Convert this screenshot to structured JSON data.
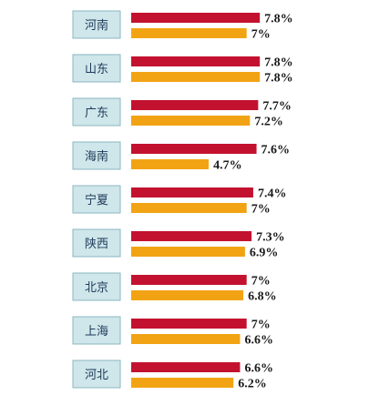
{
  "colors": {
    "series_red": "#c3122f",
    "series_orange": "#f2a314",
    "label_box_fill": "#cfe6ea",
    "label_box_stroke": "#8bb7c1"
  },
  "chart_data": {
    "type": "bar",
    "orientation": "horizontal",
    "categories": [
      "河南",
      "山东",
      "广东",
      "海南",
      "宁夏",
      "陕西",
      "北京",
      "上海",
      "河北"
    ],
    "series": [
      {
        "values": [
          7.8,
          7.8,
          7.7,
          7.6,
          7.4,
          7.3,
          7,
          7,
          6.6
        ],
        "labels": [
          "7.8%",
          "7.8%",
          "7.7%",
          "7.6%",
          "7.4%",
          "7.3%",
          "7%",
          "7%",
          "6.6%"
        ]
      },
      {
        "values": [
          7,
          7.8,
          7.2,
          4.7,
          7,
          6.9,
          6.8,
          6.6,
          6.2
        ],
        "labels": [
          "7%",
          "7.8%",
          "7.2%",
          "4.7%",
          "7%",
          "6.9%",
          "6.8%",
          "6.6%",
          "6.2%"
        ]
      }
    ],
    "title": "",
    "xlabel": "",
    "ylabel": "",
    "grid": false,
    "legend": "none"
  }
}
